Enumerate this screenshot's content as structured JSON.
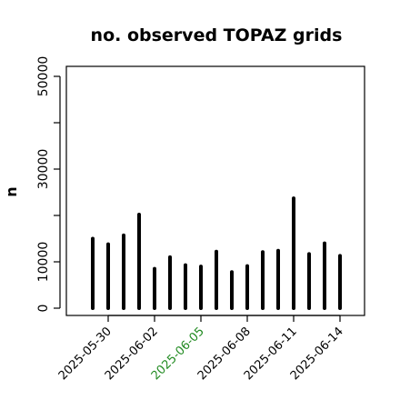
{
  "chart_data": {
    "type": "bar",
    "title": "no. observed TOPAZ grids",
    "xlabel": "",
    "ylabel": "n",
    "ylim": [
      0,
      52000
    ],
    "yticks": [
      0,
      10000,
      30000,
      50000
    ],
    "x": [
      "2025-05-29",
      "2025-05-30",
      "2025-05-31",
      "2025-06-01",
      "2025-06-02",
      "2025-06-03",
      "2025-06-04",
      "2025-06-05",
      "2025-06-06",
      "2025-06-07",
      "2025-06-08",
      "2025-06-09",
      "2025-06-10",
      "2025-06-11",
      "2025-06-12",
      "2025-06-13",
      "2025-06-14"
    ],
    "values": [
      15000,
      13800,
      15700,
      20200,
      8500,
      11000,
      9300,
      9000,
      12200,
      7800,
      9100,
      12100,
      12400,
      23700,
      11700,
      14000,
      11300
    ],
    "xticks": [
      {
        "label": "2025-05-30",
        "color": "#000000"
      },
      {
        "label": "2025-06-02",
        "color": "#000000"
      },
      {
        "label": "2025-06-05",
        "color": "#228b22"
      },
      {
        "label": "2025-06-08",
        "color": "#000000"
      },
      {
        "label": "2025-06-11",
        "color": "#000000"
      },
      {
        "label": "2025-06-14",
        "color": "#000000"
      }
    ],
    "grid": false,
    "bar_color": "#000000"
  }
}
